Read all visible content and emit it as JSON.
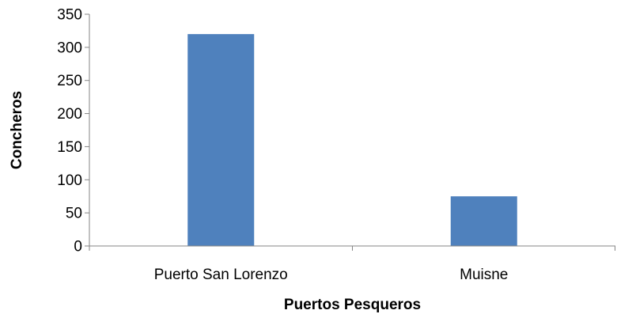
{
  "chart_data": {
    "type": "bar",
    "categories": [
      "Puerto San Lorenzo",
      "Muisne"
    ],
    "values": [
      320,
      75
    ],
    "xlabel": "Puertos Pesqueros",
    "ylabel": "Concheros",
    "ylim": [
      0,
      350
    ],
    "yticks": [
      0,
      50,
      100,
      150,
      200,
      250,
      300,
      350
    ],
    "grid": false,
    "legend": "none",
    "bar_color": "#4F81BD",
    "axis_color": "#868686"
  }
}
